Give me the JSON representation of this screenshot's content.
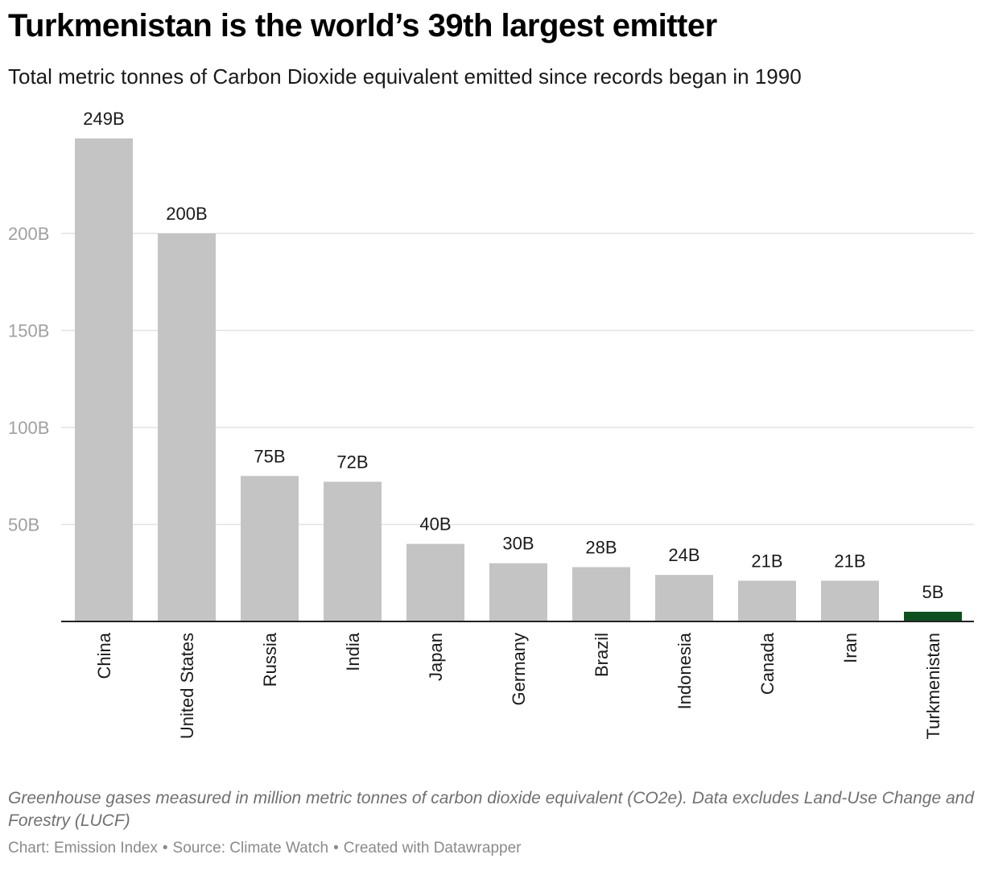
{
  "header": {
    "title": "Turkmenistan is the world’s 39th largest emitter",
    "subtitle": "Total metric tonnes of Carbon Dioxide equivalent emitted since records began in 1990"
  },
  "footer": {
    "notes": "Greenhouse gases measured in million metric tonnes of carbon dioxide equivalent (CO2e). Data excludes Land-Use Change and Forestry (LUCF)",
    "credit": "Chart: Emission Index",
    "source": "Source: Climate Watch",
    "created_with": "Created with Datawrapper",
    "separator": "•"
  },
  "chart_data": {
    "type": "bar",
    "title": "Turkmenistan is the world’s 39th largest emitter",
    "subtitle": "Total metric tonnes of Carbon Dioxide equivalent emitted since records began in 1990",
    "xlabel": "",
    "ylabel": "",
    "categories": [
      "China",
      "United States",
      "Russia",
      "India",
      "Japan",
      "Germany",
      "Brazil",
      "Indonesia",
      "Canada",
      "Iran",
      "Turkmenistan"
    ],
    "values": [
      249,
      200,
      75,
      72,
      40,
      30,
      28,
      24,
      21,
      21,
      5
    ],
    "data_labels": [
      "249B",
      "200B",
      "75B",
      "72B",
      "40B",
      "30B",
      "28B",
      "24B",
      "21B",
      "21B",
      "5B"
    ],
    "unit": "B",
    "ylim": [
      0,
      249
    ],
    "yticks": [
      50,
      100,
      150,
      200
    ],
    "ytick_labels": [
      "50B",
      "100B",
      "150B",
      "200B"
    ],
    "grid": true,
    "legend": "none",
    "bar_color": "#c4c4c4",
    "highlight_color": "#0d4f1f",
    "highlight_category": "Turkmenistan",
    "gridline_color": "#e2e2e2",
    "baseline_color": "#222222",
    "tick_label_color": "#a0a0a0"
  }
}
